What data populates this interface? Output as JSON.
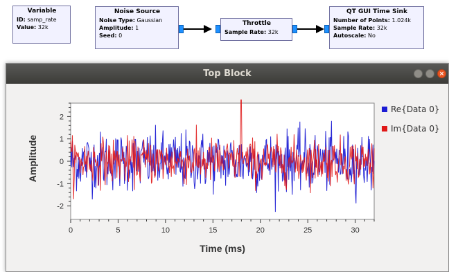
{
  "flowgraph": {
    "variable": {
      "title": "Variable",
      "id_label": "ID:",
      "id_value": "samp_rate",
      "value_label": "Value:",
      "value_value": "32k"
    },
    "noise_source": {
      "title": "Noise Source",
      "type_label": "Noise Type:",
      "type_value": "Gaussian",
      "amp_label": "Amplitude:",
      "amp_value": "1",
      "seed_label": "Seed:",
      "seed_value": "0"
    },
    "throttle": {
      "title": "Throttle",
      "rate_label": "Sample Rate:",
      "rate_value": "32k"
    },
    "time_sink": {
      "title": "QT GUI Time Sink",
      "points_label": "Number of Points:",
      "points_value": "1.024k",
      "rate_label": "Sample Rate:",
      "rate_value": "32k",
      "autoscale_label": "Autoscale:",
      "autoscale_value": "No"
    }
  },
  "window": {
    "title": "Top Block"
  },
  "colors": {
    "port": "#1e90ff",
    "re": "#1c1cd4",
    "im": "#e01818"
  },
  "chart_data": {
    "type": "line",
    "xlabel": "Time (ms)",
    "ylabel": "Amplitude",
    "xlim": [
      0,
      32
    ],
    "ylim": [
      -2.6,
      2.6
    ],
    "xticks": [
      "0",
      "5",
      "10",
      "15",
      "20",
      "25",
      "30"
    ],
    "yticks": [
      "2",
      "1",
      "0",
      "-1",
      "-2"
    ],
    "legend_position": "right",
    "series": [
      {
        "name": "Re{Data 0}",
        "color": "#1c1cd4",
        "distribution": "gaussian",
        "std": 0.65,
        "points": 1024
      },
      {
        "name": "Im{Data 0}",
        "color": "#e01818",
        "distribution": "gaussian",
        "std": 0.5,
        "points": 1024,
        "peak": {
          "x": 18,
          "y": 2.75
        }
      }
    ]
  }
}
